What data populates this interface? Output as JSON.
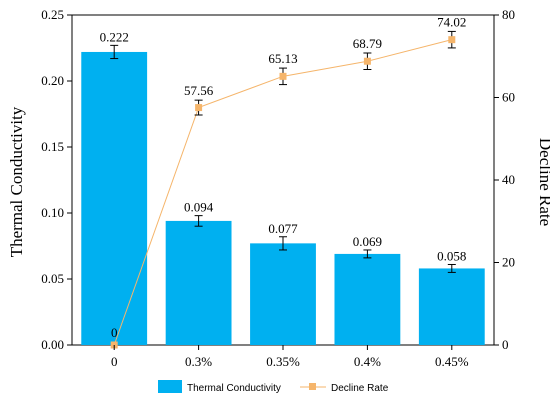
{
  "chart_data": {
    "type": "bar",
    "categories": [
      "0",
      "0.3%",
      "0.35%",
      "0.4%",
      "0.45%"
    ],
    "ylabel_left": "Thermal Conductivity",
    "ylabel_right": "Decline Rate",
    "y_left_lim": [
      0,
      0.25
    ],
    "y_left_ticks": [
      "0.00",
      "0.05",
      "0.10",
      "0.15",
      "0.20",
      "0.25"
    ],
    "y_right_lim": [
      0,
      80
    ],
    "y_right_ticks": [
      "0",
      "20",
      "40",
      "60",
      "80"
    ],
    "grid": false,
    "legend_position": "bottom",
    "series": [
      {
        "name": "Thermal Conductivity",
        "kind": "bar",
        "axis": "left",
        "color": "#00b0f0",
        "values": [
          0.222,
          0.094,
          0.077,
          0.069,
          0.058
        ],
        "labels": [
          "0.222",
          "0.094",
          "0.077",
          "0.069",
          "0.058"
        ],
        "errors": [
          0.005,
          0.004,
          0.005,
          0.003,
          0.003
        ]
      },
      {
        "name": "Decline Rate",
        "kind": "line",
        "axis": "right",
        "color": "#f5b56b",
        "values": [
          0,
          57.56,
          65.13,
          68.79,
          74.02
        ],
        "labels": [
          "0",
          "57.56",
          "65.13",
          "68.79",
          "74.02"
        ],
        "errors": [
          0,
          1.8,
          2.0,
          2.0,
          2.0
        ]
      }
    ]
  }
}
